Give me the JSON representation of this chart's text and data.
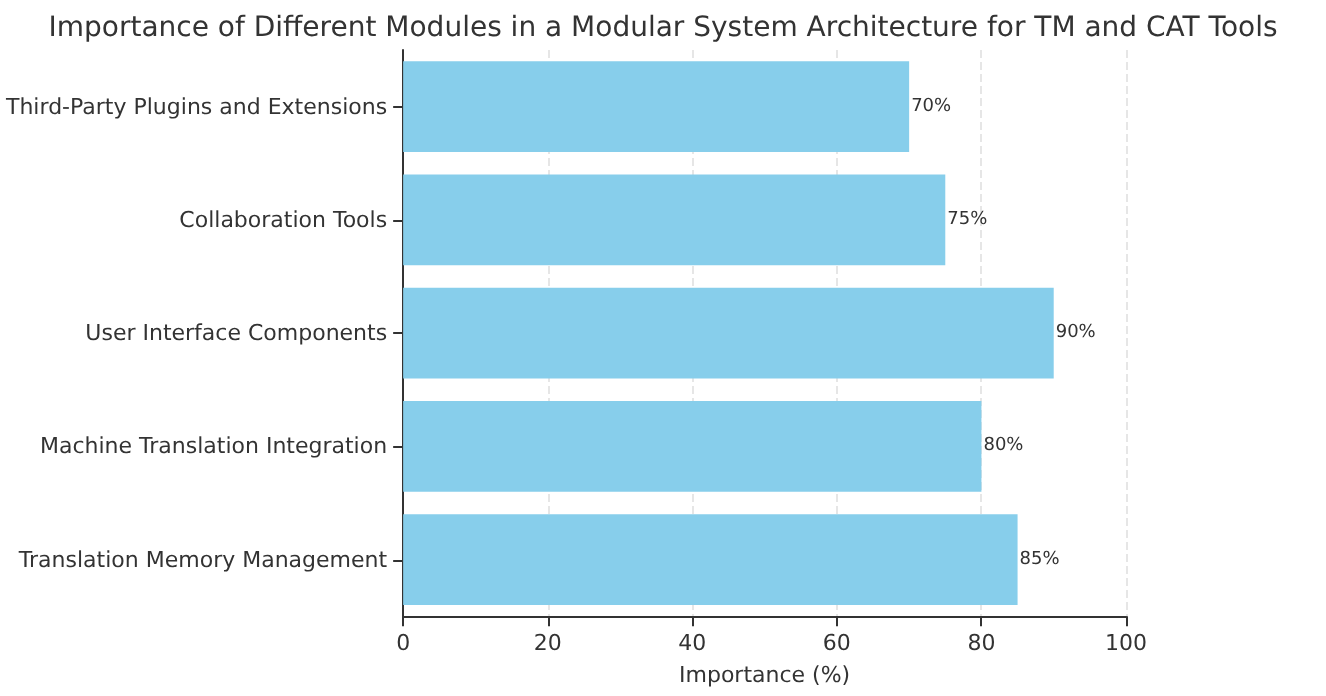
{
  "chart_data": {
    "type": "bar",
    "orientation": "horizontal",
    "title": "Importance of Different Modules in a Modular System Architecture for TM and CAT Tools",
    "xlabel": "Importance (%)",
    "categories": [
      "Third-Party Plugins and Extensions",
      "Collaboration Tools",
      "User Interface Components",
      "Machine Translation Integration",
      "Translation Memory Management"
    ],
    "values": [
      70,
      75,
      90,
      80,
      85
    ],
    "color": "#87ceeb",
    "value_labels": [
      "70%",
      "75%",
      "90%",
      "80%",
      "85%"
    ],
    "xlim": [
      0,
      100
    ],
    "xticks": [
      0,
      20,
      40,
      60,
      80,
      100
    ],
    "grid": "x"
  }
}
